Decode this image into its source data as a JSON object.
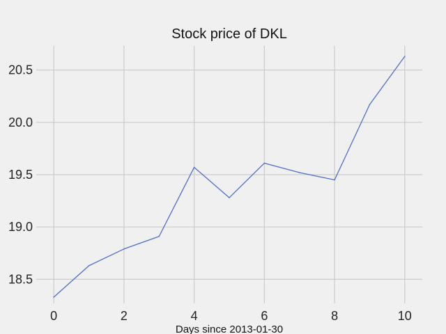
{
  "chart_data": {
    "type": "line",
    "title": "Stock price of DKL",
    "xlabel": "Days since 2013-01-30",
    "ylabel": "",
    "x": [
      0,
      1,
      2,
      3,
      4,
      5,
      6,
      7,
      8,
      9,
      10
    ],
    "series": [
      {
        "values": [
          18.33,
          18.63,
          18.79,
          18.91,
          19.57,
          19.28,
          19.61,
          19.52,
          19.45,
          20.17,
          20.63
        ]
      }
    ],
    "xlim": [
      -0.5,
      10.5
    ],
    "ylim": [
      18.27,
      20.73
    ],
    "x_ticks": [
      0,
      2,
      4,
      6,
      8,
      10
    ],
    "x_tick_labels": [
      "0",
      "2",
      "4",
      "6",
      "8",
      "10"
    ],
    "y_ticks": [
      18.5,
      19.0,
      19.5,
      20.0,
      20.5
    ],
    "y_tick_labels": [
      "18.5",
      "19.0",
      "19.5",
      "20.0",
      "20.5"
    ],
    "grid": true,
    "colors": {
      "line": "#4e6fc9",
      "background": "#f0f0f0",
      "grid": "#cbcbcb"
    }
  }
}
